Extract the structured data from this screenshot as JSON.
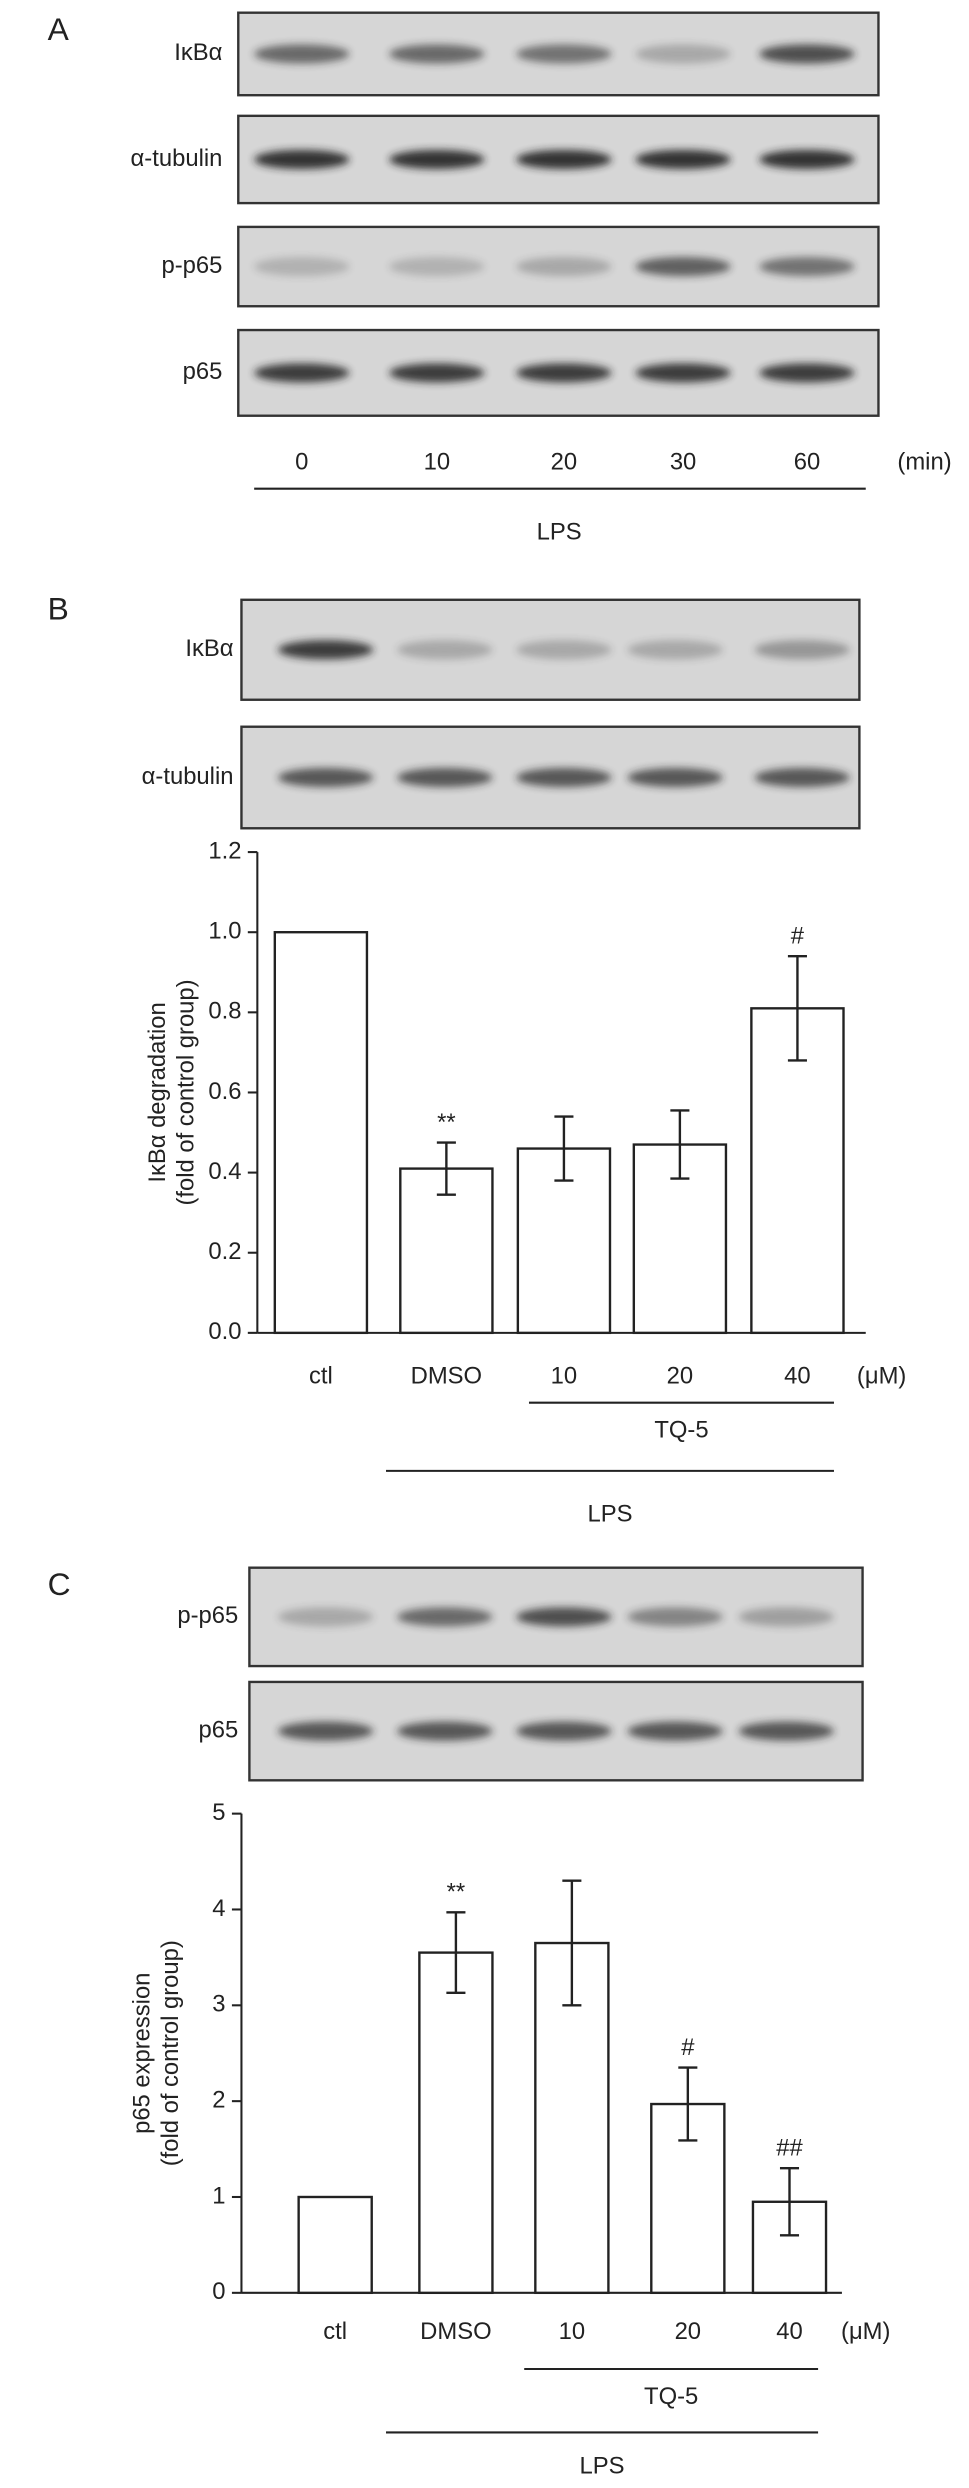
{
  "panels": [
    {
      "letter": "A",
      "blot_labels": [
        "IκBα",
        "α-tubulin",
        "p-p65",
        "p65"
      ],
      "lanes": [
        "0",
        "10",
        "20",
        "30",
        "60"
      ],
      "unit": "(min)",
      "treatment": "LPS"
    },
    {
      "letter": "B",
      "blot_labels": [
        "IκBα",
        "α-tubulin"
      ]
    },
    {
      "letter": "C",
      "blot_labels": [
        "p-p65",
        "p65"
      ]
    }
  ],
  "chart_data": [
    {
      "type": "bar",
      "y_label": [
        "IκBα degradation",
        "(fold of control group)"
      ],
      "categories": [
        "ctl",
        "DMSO",
        "10",
        "20",
        "40"
      ],
      "unit": "(μM)",
      "values": [
        1.0,
        0.41,
        0.46,
        0.47,
        0.81
      ],
      "errors": [
        null,
        0.065,
        0.08,
        0.085,
        0.13
      ],
      "annotations": [
        null,
        "**",
        null,
        null,
        "#"
      ],
      "groups": [
        "TQ-5",
        "LPS"
      ],
      "color": "#ffffff",
      "ylim": [
        0,
        1.2
      ],
      "yticks": [
        {
          "value": 0,
          "label": "0.0"
        },
        0.2,
        0.4,
        0.6,
        0.8,
        {
          "value": 1,
          "label": "1.0"
        },
        1.2
      ]
    },
    {
      "type": "bar",
      "y_label": [
        "p65 expression",
        "(fold of control group)"
      ],
      "categories": [
        "ctl",
        "DMSO",
        "10",
        "20",
        "40"
      ],
      "unit": "(μM)",
      "values": [
        1,
        3.55,
        3.65,
        1.97,
        0.95
      ],
      "errors": [
        null,
        0.42,
        0.65,
        0.38,
        0.35
      ],
      "annotations": [
        null,
        "**",
        null,
        "#",
        "##"
      ],
      "groups": [
        "TQ-5",
        "LPS"
      ],
      "color": "#ffffff",
      "ylim": [
        0,
        5
      ],
      "yticks": [
        0,
        1,
        2,
        3,
        4,
        5
      ]
    }
  ]
}
